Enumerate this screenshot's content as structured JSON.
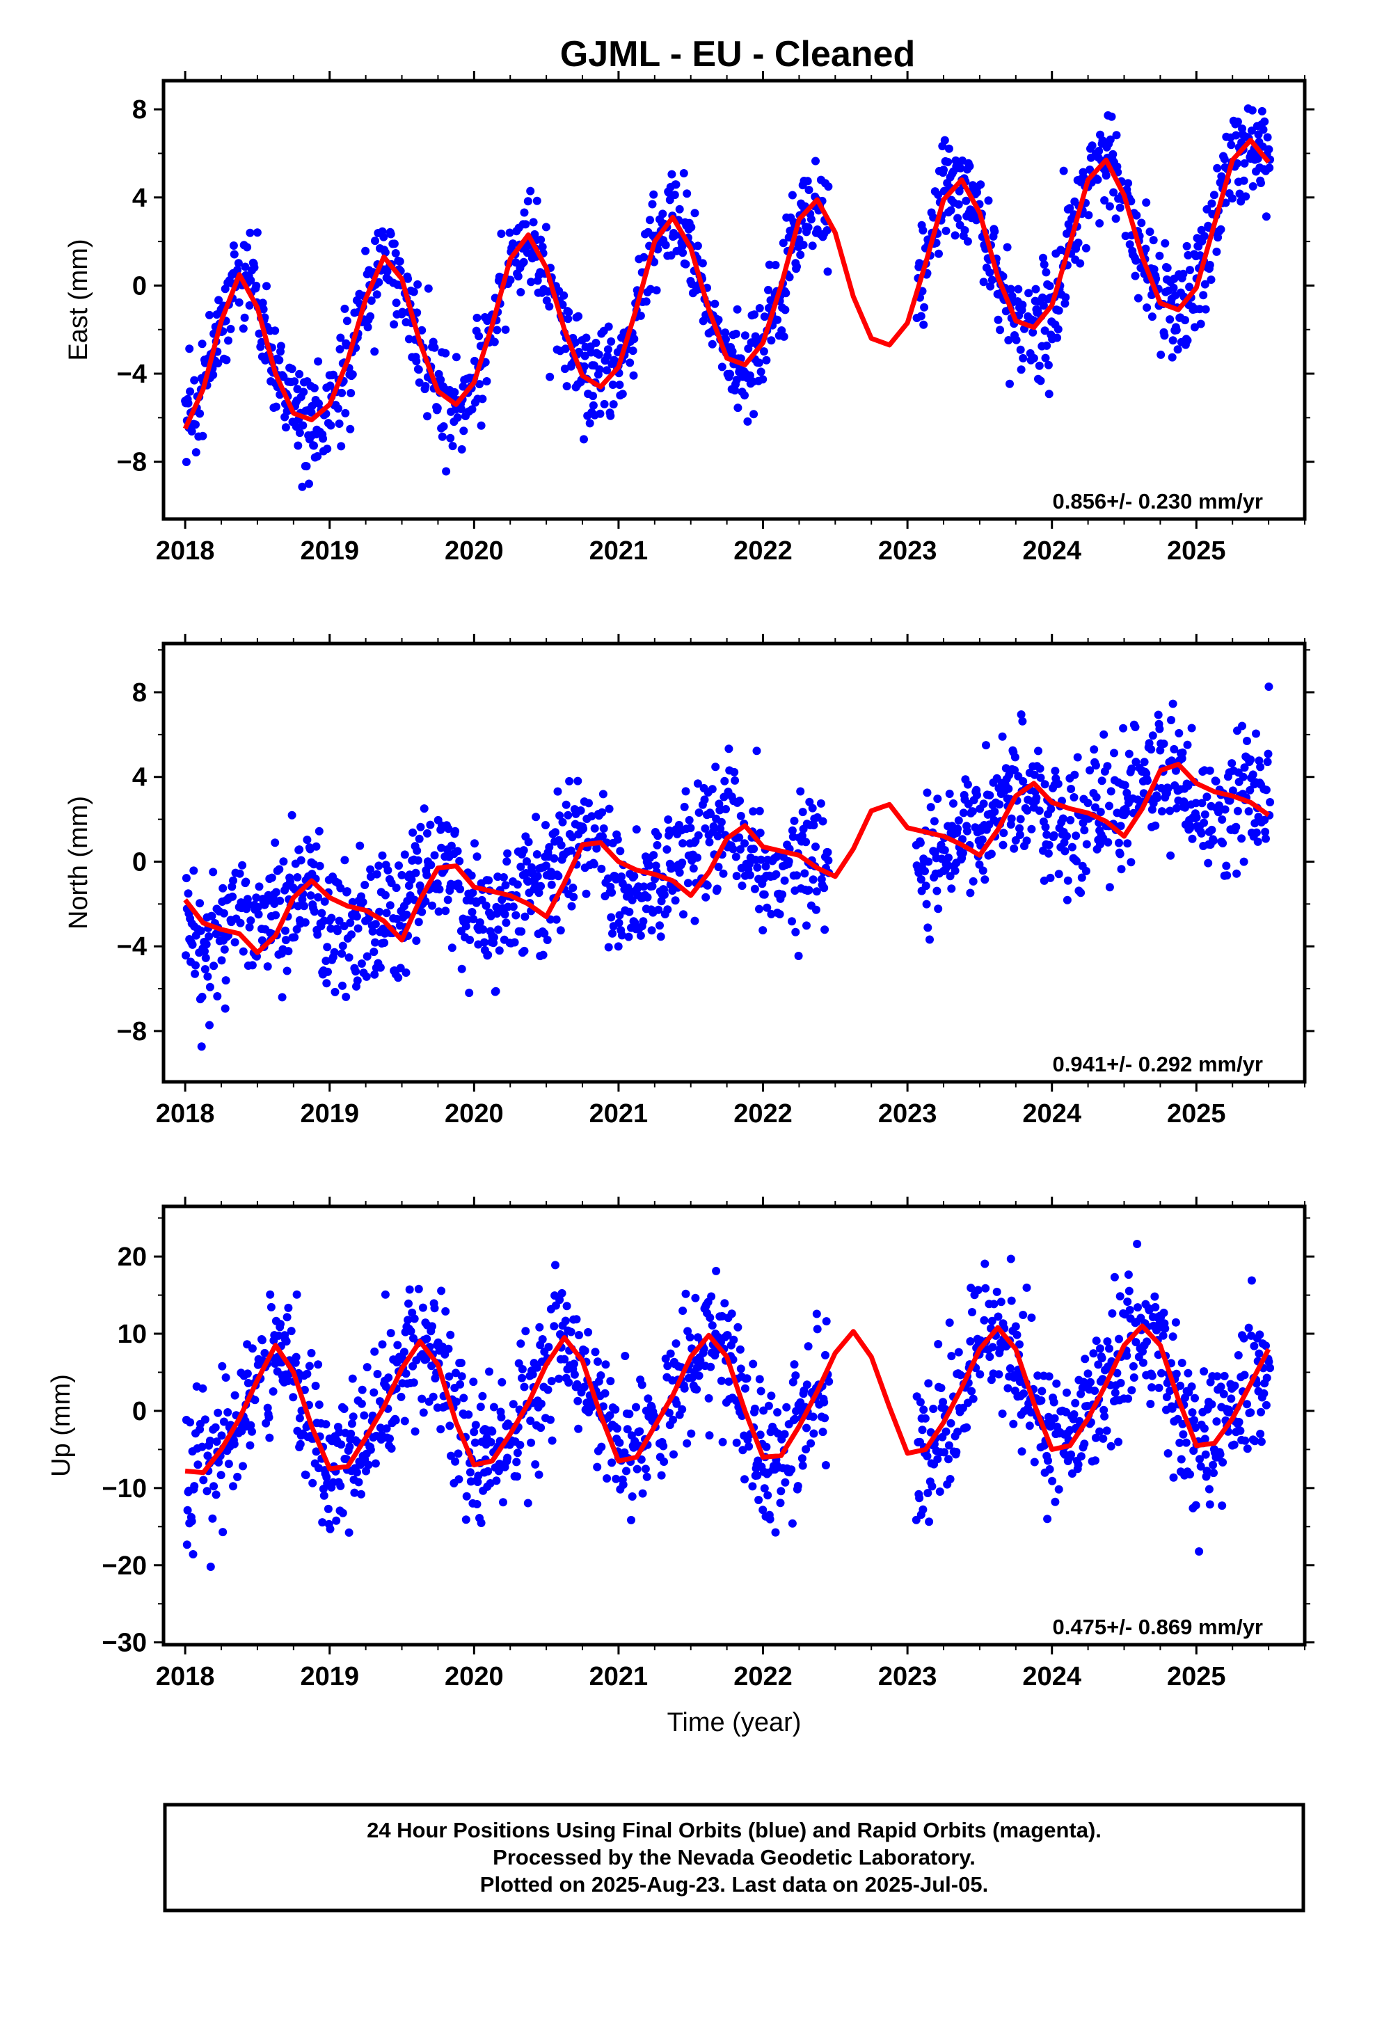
{
  "title": "GJML  - EU - Cleaned",
  "x_axis_label": "Time (year)",
  "colors": {
    "points": "#0000ff",
    "model": "#ff0000",
    "frame": "#000000"
  },
  "chart_data": [
    {
      "type": "scatter",
      "component": "East",
      "ylabel": "East (mm)",
      "xlim": [
        2017.85,
        2025.75
      ],
      "ylim": [
        -10.6,
        9.3
      ],
      "x_ticks": [
        2018,
        2019,
        2020,
        2021,
        2022,
        2023,
        2024,
        2025
      ],
      "y_ticks": [
        -8,
        -4,
        0,
        4,
        8
      ],
      "rate_text": "0.856+/- 0.230 mm/yr",
      "model": {
        "x": [
          2018.0,
          2018.125,
          2018.25,
          2018.375,
          2018.5,
          2018.625,
          2018.75,
          2018.875,
          2019.0,
          2019.125,
          2019.25,
          2019.375,
          2019.5,
          2019.625,
          2019.75,
          2019.875,
          2020.0,
          2020.125,
          2020.25,
          2020.375,
          2020.5,
          2020.625,
          2020.75,
          2020.875,
          2021.0,
          2021.125,
          2021.25,
          2021.375,
          2021.5,
          2021.625,
          2021.75,
          2021.875,
          2022.0,
          2022.125,
          2022.25,
          2022.375,
          2022.5,
          2022.625,
          2022.75,
          2022.875,
          2023.0,
          2023.125,
          2023.25,
          2023.375,
          2023.5,
          2023.625,
          2023.75,
          2023.875,
          2024.0,
          2024.125,
          2024.25,
          2024.375,
          2024.5,
          2024.625,
          2024.75,
          2024.875,
          2025.0,
          2025.125,
          2025.25,
          2025.375,
          2025.5
        ],
        "y": [
          -6.5,
          -4.7,
          -1.6,
          0.5,
          -1.0,
          -4.0,
          -5.8,
          -6.1,
          -5.4,
          -3.4,
          -0.6,
          1.3,
          0.3,
          -2.6,
          -4.8,
          -5.4,
          -4.4,
          -1.8,
          1.2,
          2.3,
          0.8,
          -2.0,
          -4.1,
          -4.6,
          -3.7,
          -1.0,
          2.0,
          3.1,
          1.7,
          -1.1,
          -3.3,
          -3.6,
          -2.6,
          0.0,
          3.0,
          3.9,
          2.4,
          -0.5,
          -2.4,
          -2.7,
          -1.7,
          1.0,
          3.9,
          4.8,
          3.3,
          0.4,
          -1.6,
          -1.9,
          -0.9,
          1.9,
          4.8,
          5.7,
          4.1,
          1.3,
          -0.8,
          -1.1,
          -0.1,
          2.8,
          5.7,
          6.6,
          5.6
        ]
      },
      "points": "generated"
    },
    {
      "type": "scatter",
      "component": "North",
      "ylabel": "North (mm)",
      "xlim": [
        2017.85,
        2025.75
      ],
      "ylim": [
        -10.4,
        10.3
      ],
      "x_ticks": [
        2018,
        2019,
        2020,
        2021,
        2022,
        2023,
        2024,
        2025
      ],
      "y_ticks": [
        -8,
        -4,
        0,
        4,
        8
      ],
      "rate_text": "0.941+/- 0.292 mm/yr",
      "model": {
        "x": [
          2018.0,
          2018.125,
          2018.25,
          2018.375,
          2018.5,
          2018.625,
          2018.75,
          2018.875,
          2019.0,
          2019.125,
          2019.25,
          2019.375,
          2019.5,
          2019.625,
          2019.75,
          2019.875,
          2020.0,
          2020.125,
          2020.25,
          2020.375,
          2020.5,
          2020.625,
          2020.75,
          2020.875,
          2021.0,
          2021.125,
          2021.25,
          2021.375,
          2021.5,
          2021.625,
          2021.75,
          2021.875,
          2022.0,
          2022.125,
          2022.25,
          2022.375,
          2022.5,
          2022.625,
          2022.75,
          2022.875,
          2023.0,
          2023.125,
          2023.25,
          2023.375,
          2023.5,
          2023.625,
          2023.75,
          2023.875,
          2024.0,
          2024.125,
          2024.25,
          2024.375,
          2024.5,
          2024.625,
          2024.75,
          2024.875,
          2025.0,
          2025.125,
          2025.25,
          2025.375,
          2025.5
        ],
        "y": [
          -1.8,
          -2.9,
          -3.2,
          -3.4,
          -4.3,
          -3.5,
          -1.7,
          -0.9,
          -1.7,
          -2.1,
          -2.3,
          -2.8,
          -3.7,
          -1.8,
          -0.3,
          -0.2,
          -1.2,
          -1.4,
          -1.6,
          -2.0,
          -2.6,
          -1.0,
          0.8,
          0.9,
          0.0,
          -0.4,
          -0.6,
          -0.9,
          -1.6,
          -0.5,
          1.1,
          1.7,
          0.7,
          0.5,
          0.3,
          -0.3,
          -0.7,
          0.6,
          2.4,
          2.7,
          1.6,
          1.4,
          1.2,
          0.8,
          0.3,
          1.5,
          3.1,
          3.7,
          2.8,
          2.5,
          2.3,
          1.9,
          1.2,
          2.5,
          4.3,
          4.6,
          3.7,
          3.3,
          3.1,
          2.8,
          2.2
        ]
      },
      "points": "generated"
    },
    {
      "type": "scatter",
      "component": "Up",
      "ylabel": "Up (mm)",
      "xlim": [
        2017.85,
        2025.75
      ],
      "ylim": [
        -30.3,
        26.5
      ],
      "x_ticks": [
        2018,
        2019,
        2020,
        2021,
        2022,
        2023,
        2024,
        2025
      ],
      "y_ticks": [
        -30,
        -20,
        -10,
        0,
        10,
        20
      ],
      "rate_text": "0.475+/- 0.869 mm/yr",
      "model": {
        "x": [
          2018.0,
          2018.125,
          2018.25,
          2018.375,
          2018.5,
          2018.625,
          2018.75,
          2018.875,
          2019.0,
          2019.125,
          2019.25,
          2019.375,
          2019.5,
          2019.625,
          2019.75,
          2019.875,
          2020.0,
          2020.125,
          2020.25,
          2020.375,
          2020.5,
          2020.625,
          2020.75,
          2020.875,
          2021.0,
          2021.125,
          2021.25,
          2021.375,
          2021.5,
          2021.625,
          2021.75,
          2021.875,
          2022.0,
          2022.125,
          2022.25,
          2022.375,
          2022.5,
          2022.625,
          2022.75,
          2022.875,
          2023.0,
          2023.125,
          2023.25,
          2023.375,
          2023.5,
          2023.625,
          2023.75,
          2023.875,
          2024.0,
          2024.125,
          2024.25,
          2024.375,
          2024.5,
          2024.625,
          2024.75,
          2024.875,
          2025.0,
          2025.125,
          2025.25,
          2025.375,
          2025.5
        ],
        "y": [
          -7.8,
          -8.0,
          -5.0,
          -1.0,
          4.0,
          8.5,
          5.0,
          -2.0,
          -7.5,
          -7.2,
          -3.5,
          0.5,
          5.5,
          9.0,
          6.0,
          -1.5,
          -7.0,
          -6.5,
          -3.0,
          1.0,
          6.0,
          9.5,
          6.5,
          -0.5,
          -6.5,
          -6.0,
          -2.0,
          2.0,
          7.0,
          9.8,
          7.0,
          0.0,
          -6.0,
          -5.8,
          -2.0,
          2.5,
          7.5,
          10.3,
          7.0,
          0.5,
          -5.5,
          -5.0,
          -1.5,
          3.0,
          8.0,
          10.8,
          8.0,
          1.0,
          -5.0,
          -4.5,
          -1.0,
          3.5,
          8.5,
          11.0,
          8.5,
          1.5,
          -4.5,
          -4.2,
          -1.0,
          3.5,
          8.0
        ]
      },
      "points": "generated"
    }
  ],
  "footer": {
    "line1": "24 Hour Positions Using Final Orbits (blue) and Rapid Orbits (magenta).",
    "line2": "Processed by the Nevada Geodetic Laboratory.",
    "line3": "Plotted on 2025-Aug-23. Last data on 2025-Jul-05."
  }
}
